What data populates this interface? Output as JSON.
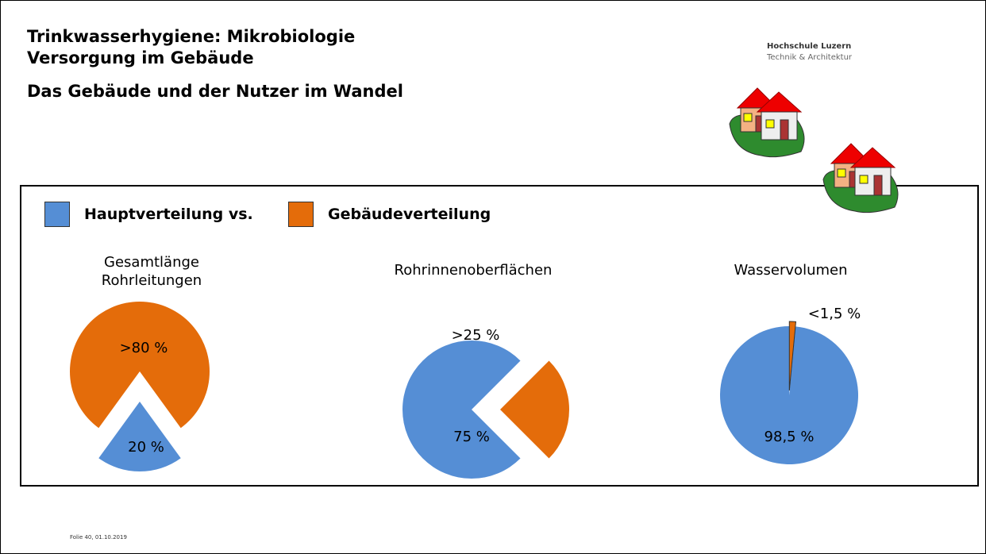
{
  "header": {
    "title": "Trinkwasserhygiene: Mikrobiologie",
    "subtitle": "Versorgung im Gebäude",
    "heading": "Das Gebäude und der Nutzer im Wandel",
    "logo": [
      "Hochschule Luzern",
      "Technik & Architektur"
    ]
  },
  "legend": {
    "entries": [
      {
        "name": "Hauptverteilung vs.",
        "color": "#558ed5"
      },
      {
        "name": "Gebäudeverteilung",
        "color": "#e46c0a"
      }
    ]
  },
  "chart_data": [
    {
      "type": "pie",
      "title": "Gesamtlänge Rohrleitungen",
      "values": [
        20,
        80
      ],
      "value_labels": [
        "20 %",
        ">80 %"
      ],
      "exploded": 0
    },
    {
      "type": "pie",
      "title": "Rohrinnenoberflächen",
      "values": [
        75,
        25
      ],
      "value_labels": [
        "75 %",
        ">25 %"
      ],
      "exploded": 1
    },
    {
      "type": "pie",
      "title": "Wasservolumen",
      "values": [
        98.5,
        1.5
      ],
      "value_labels": [
        "98,5 %",
        "<1,5 %"
      ],
      "exploded": 1
    }
  ],
  "footer": "Folie 40, 01.10.2019"
}
